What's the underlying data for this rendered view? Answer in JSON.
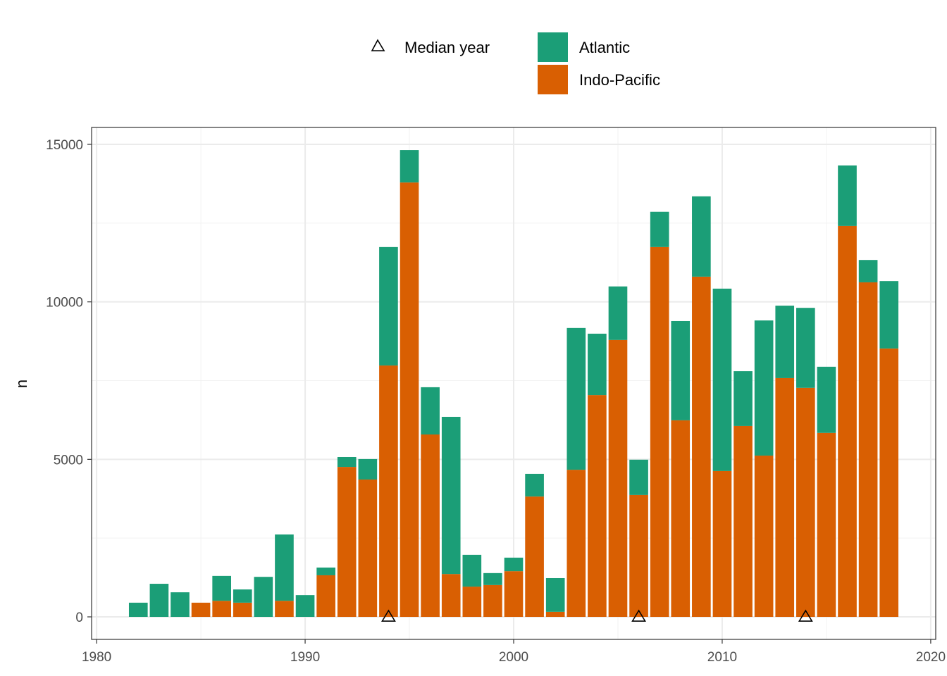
{
  "chart_data": {
    "type": "bar",
    "stacked": true,
    "title": "",
    "xlabel": "",
    "ylabel": "n",
    "xlim": [
      1979.76,
      2020.24
    ],
    "ylim": [
      -715,
      15537
    ],
    "x_ticks": [
      1980,
      1990,
      2000,
      2010,
      2020
    ],
    "y_ticks": [
      0,
      5000,
      10000,
      15000
    ],
    "grid": true,
    "legend_position": "top",
    "categories": [
      1982,
      1983,
      1984,
      1985,
      1986,
      1987,
      1988,
      1989,
      1990,
      1991,
      1992,
      1993,
      1994,
      1995,
      1996,
      1997,
      1998,
      1999,
      2000,
      2001,
      2002,
      2003,
      2004,
      2005,
      2006,
      2007,
      2008,
      2009,
      2010,
      2011,
      2012,
      2013,
      2014,
      2015,
      2016,
      2017,
      2018
    ],
    "series": [
      {
        "name": "Indo-Pacific",
        "color": "#D95F02",
        "values": [
          0,
          0,
          0,
          450,
          510,
          450,
          0,
          510,
          0,
          1320,
          4760,
          4360,
          7980,
          13790,
          5790,
          1360,
          960,
          1010,
          1450,
          3820,
          160,
          4670,
          7040,
          8790,
          3870,
          11740,
          6240,
          10800,
          4630,
          6060,
          5120,
          7580,
          7270,
          5840,
          12410,
          10620,
          8520
        ]
      },
      {
        "name": "Atlantic",
        "color": "#1B9E77",
        "values": [
          450,
          1050,
          780,
          0,
          790,
          420,
          1270,
          2105,
          690,
          245,
          315,
          650,
          3760,
          1030,
          1500,
          4990,
          1010,
          380,
          430,
          720,
          1070,
          4500,
          1950,
          1700,
          1120,
          1120,
          3150,
          2550,
          5790,
          1740,
          4290,
          2300,
          2540,
          2100,
          1920,
          710,
          2140
        ]
      }
    ],
    "median_year": {
      "label": "Median year",
      "symbol": "triangle-open",
      "years": [
        1994,
        2006,
        2014
      ]
    }
  }
}
